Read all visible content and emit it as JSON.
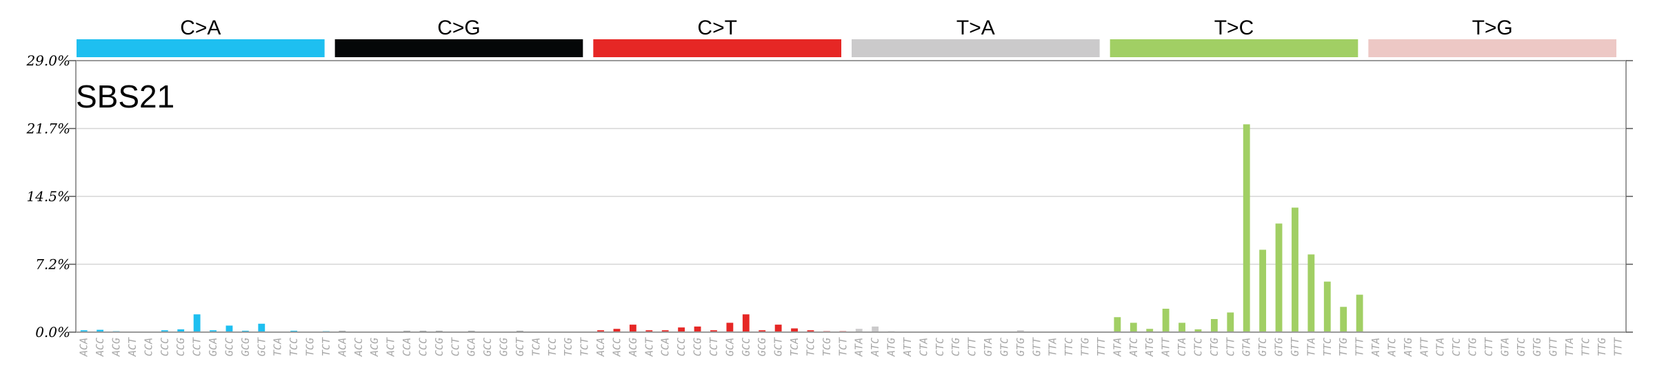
{
  "chart_data": {
    "type": "bar",
    "title": "SBS21",
    "ylim": [
      0,
      29.0
    ],
    "yticks": [
      "0.0%",
      "7.2%",
      "14.5%",
      "21.7%",
      "29.0%"
    ],
    "grid": true,
    "groups": [
      {
        "label": "C>A",
        "color": "#1ebff0"
      },
      {
        "label": "C>G",
        "color": "#050708"
      },
      {
        "label": "C>T",
        "color": "#e62725"
      },
      {
        "label": "T>A",
        "color": "#cbcacb"
      },
      {
        "label": "T>C",
        "color": "#a1cf64"
      },
      {
        "label": "T>G",
        "color": "#edc8c5"
      }
    ],
    "categories": [
      "ACA",
      "ACC",
      "ACG",
      "ACT",
      "CCA",
      "CCC",
      "CCG",
      "CCT",
      "GCA",
      "GCC",
      "GCG",
      "GCT",
      "TCA",
      "TCC",
      "TCG",
      "TCT",
      "ACA",
      "ACC",
      "ACG",
      "ACT",
      "CCA",
      "CCC",
      "CCG",
      "CCT",
      "GCA",
      "GCC",
      "GCG",
      "GCT",
      "TCA",
      "TCC",
      "TCG",
      "TCT",
      "ACA",
      "ACC",
      "ACG",
      "ACT",
      "CCA",
      "CCC",
      "CCG",
      "CCT",
      "GCA",
      "GCC",
      "GCG",
      "GCT",
      "TCA",
      "TCC",
      "TCG",
      "TCT",
      "ATA",
      "ATC",
      "ATG",
      "ATT",
      "CTA",
      "CTC",
      "CTG",
      "CTT",
      "GTA",
      "GTC",
      "GTG",
      "GTT",
      "TTA",
      "TTC",
      "TTG",
      "TTT",
      "ATA",
      "ATC",
      "ATG",
      "ATT",
      "CTA",
      "CTC",
      "CTG",
      "CTT",
      "GTA",
      "GTC",
      "GTG",
      "GTT",
      "TTA",
      "TTC",
      "TTG",
      "TTT",
      "ATA",
      "ATC",
      "ATG",
      "ATT",
      "CTA",
      "CTC",
      "CTG",
      "CTT",
      "GTA",
      "GTC",
      "GTG",
      "GTT",
      "TTA",
      "TTC",
      "TTG",
      "TTT"
    ],
    "values": [
      0.2,
      0.25,
      0.1,
      0.0,
      0.0,
      0.2,
      0.3,
      1.9,
      0.2,
      0.7,
      0.15,
      0.9,
      0.05,
      0.15,
      0.05,
      0.1,
      0.1,
      0.05,
      0.05,
      0.05,
      0.1,
      0.1,
      0.1,
      0.05,
      0.1,
      0.05,
      0.05,
      0.1,
      0.05,
      0.05,
      0.05,
      0.05,
      0.2,
      0.35,
      0.8,
      0.2,
      0.2,
      0.5,
      0.6,
      0.2,
      1.0,
      1.9,
      0.2,
      0.8,
      0.4,
      0.2,
      0.1,
      0.1,
      0.35,
      0.6,
      0.1,
      0.05,
      0.05,
      0.05,
      0.05,
      0.05,
      0.05,
      0.05,
      0.2,
      0.05,
      0.05,
      0.05,
      0.05,
      0.05,
      1.6,
      1.0,
      0.35,
      2.5,
      1.0,
      0.3,
      1.4,
      2.1,
      22.2,
      8.8,
      11.6,
      13.3,
      8.3,
      5.4,
      2.7,
      4.0,
      0.05,
      0.05,
      0.0,
      0.05,
      0.05,
      0.05,
      0.0,
      0.05,
      0.05,
      0.05,
      0.05,
      0.05,
      0.05,
      0.05,
      0.05,
      0.05
    ]
  }
}
